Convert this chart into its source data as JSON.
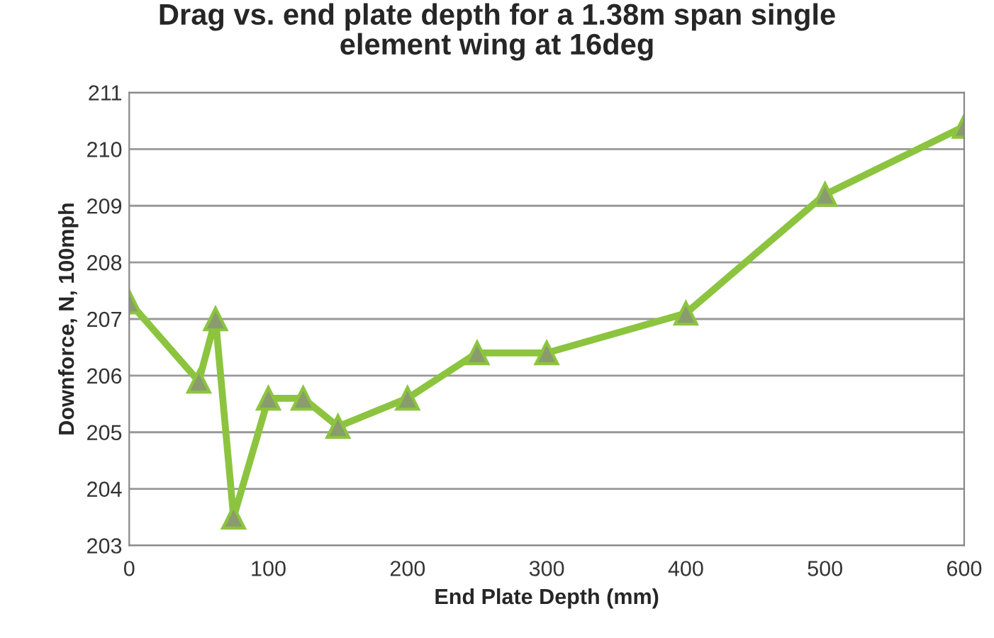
{
  "chart_data": {
    "type": "line",
    "title": "Drag vs. end plate depth for a 1.38m span single\nelement wing at 16deg",
    "xlabel": "End Plate Depth (mm)",
    "ylabel": "Downforce, N, 100mph",
    "x": [
      0,
      50,
      62,
      75,
      100,
      125,
      150,
      200,
      250,
      300,
      400,
      500,
      600
    ],
    "series": [
      {
        "color": "#8cc43f",
        "values": [
          207.3,
          205.9,
          207.0,
          203.5,
          205.6,
          205.6,
          205.1,
          205.6,
          206.4,
          206.4,
          207.1,
          209.2,
          210.4
        ]
      }
    ],
    "xlim": [
      0,
      600
    ],
    "xticks": [
      0,
      100,
      200,
      300,
      400,
      500,
      600
    ],
    "ylim": [
      203,
      211
    ],
    "yticks": [
      203,
      204,
      205,
      206,
      207,
      208,
      209,
      210,
      211
    ],
    "grid": "y",
    "marker": "triangle",
    "line_style": "solid"
  }
}
